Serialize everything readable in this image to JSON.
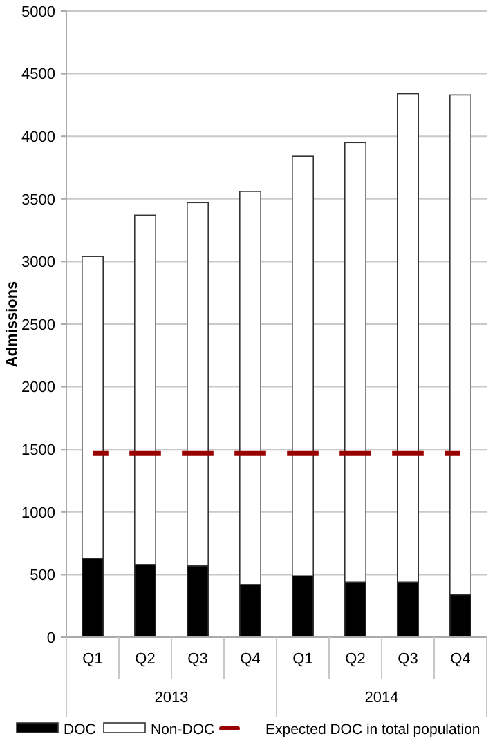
{
  "chart_data": {
    "type": "bar",
    "stacked": true,
    "ylabel": "Admissions",
    "categories": [
      "Q1",
      "Q2",
      "Q3",
      "Q4",
      "Q1",
      "Q2",
      "Q3",
      "Q4"
    ],
    "annotations": [
      "2013",
      "2014"
    ],
    "series": [
      {
        "name": "DOC",
        "color": "#000000",
        "values": [
          630,
          580,
          570,
          420,
          490,
          440,
          440,
          340
        ]
      },
      {
        "name": "Non-DOC",
        "color": "#ffffff",
        "values": [
          2410,
          2790,
          2900,
          3140,
          3350,
          3510,
          3900,
          3990
        ]
      },
      {
        "name": "Expected DOC in total population",
        "type": "line",
        "color": "#990000",
        "line_style": "dashed",
        "values": [
          1470,
          1470,
          1470,
          1470,
          1470,
          1470,
          1470,
          1470
        ]
      }
    ],
    "ylim": [
      0,
      5000
    ],
    "yticks": [
      0,
      500,
      1000,
      1500,
      2000,
      2500,
      3000,
      3500,
      4000,
      4500,
      5000
    ],
    "grid": "y",
    "legend": "bottom"
  }
}
